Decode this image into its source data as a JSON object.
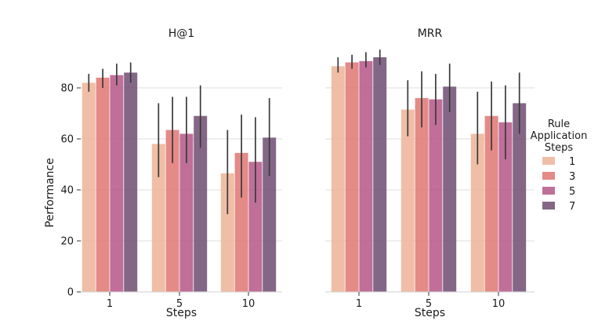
{
  "chart_data": {
    "type": "bar",
    "ylabel": "Performance",
    "ylim": [
      0,
      95
    ],
    "yticks": [
      0,
      20,
      40,
      60,
      80
    ],
    "categories": [
      "1",
      "5",
      "10"
    ],
    "legend": {
      "title_lines": [
        "Rule",
        "Application",
        "Steps"
      ],
      "position": "right",
      "entries": [
        "1",
        "3",
        "5",
        "7"
      ]
    },
    "colors": [
      "#eeb59a",
      "#e07a76",
      "#b65b8a",
      "#735275"
    ],
    "panels": [
      {
        "title": "H@1",
        "xlabel": "Steps",
        "show_yaxis": true,
        "series": [
          {
            "name": "1",
            "values": [
              82,
              58,
              46.5
            ],
            "err_low": [
              78.5,
              45,
              30.5
            ],
            "err_high": [
              85.5,
              74,
              63.5
            ]
          },
          {
            "name": "3",
            "values": [
              84,
              63.5,
              54.5
            ],
            "err_low": [
              80,
              50.5,
              37
            ],
            "err_high": [
              87.5,
              76.5,
              69.5
            ]
          },
          {
            "name": "5",
            "values": [
              85,
              62,
              51
            ],
            "err_low": [
              81,
              50.5,
              35
            ],
            "err_high": [
              89.5,
              76.5,
              68.5
            ]
          },
          {
            "name": "7",
            "values": [
              86,
              69,
              60.5
            ],
            "err_low": [
              82,
              56.5,
              45.5
            ],
            "err_high": [
              90,
              81,
              76
            ]
          }
        ]
      },
      {
        "title": "MRR",
        "xlabel": "Steps",
        "show_yaxis": false,
        "series": [
          {
            "name": "1",
            "values": [
              88.5,
              71.5,
              62
            ],
            "err_low": [
              86,
              61,
              50
            ],
            "err_high": [
              92,
              83,
              78.5
            ]
          },
          {
            "name": "3",
            "values": [
              90,
              76,
              69
            ],
            "err_low": [
              87.5,
              64.5,
              55.5
            ],
            "err_high": [
              93,
              86.5,
              82.5
            ]
          },
          {
            "name": "5",
            "values": [
              90.5,
              75.5,
              66.5
            ],
            "err_low": [
              88,
              65.5,
              52
            ],
            "err_high": [
              94,
              85.5,
              81
            ]
          },
          {
            "name": "7",
            "values": [
              92,
              80.5,
              74
            ],
            "err_low": [
              89,
              70.5,
              62
            ],
            "err_high": [
              95,
              89.5,
              86
            ]
          }
        ]
      }
    ]
  }
}
